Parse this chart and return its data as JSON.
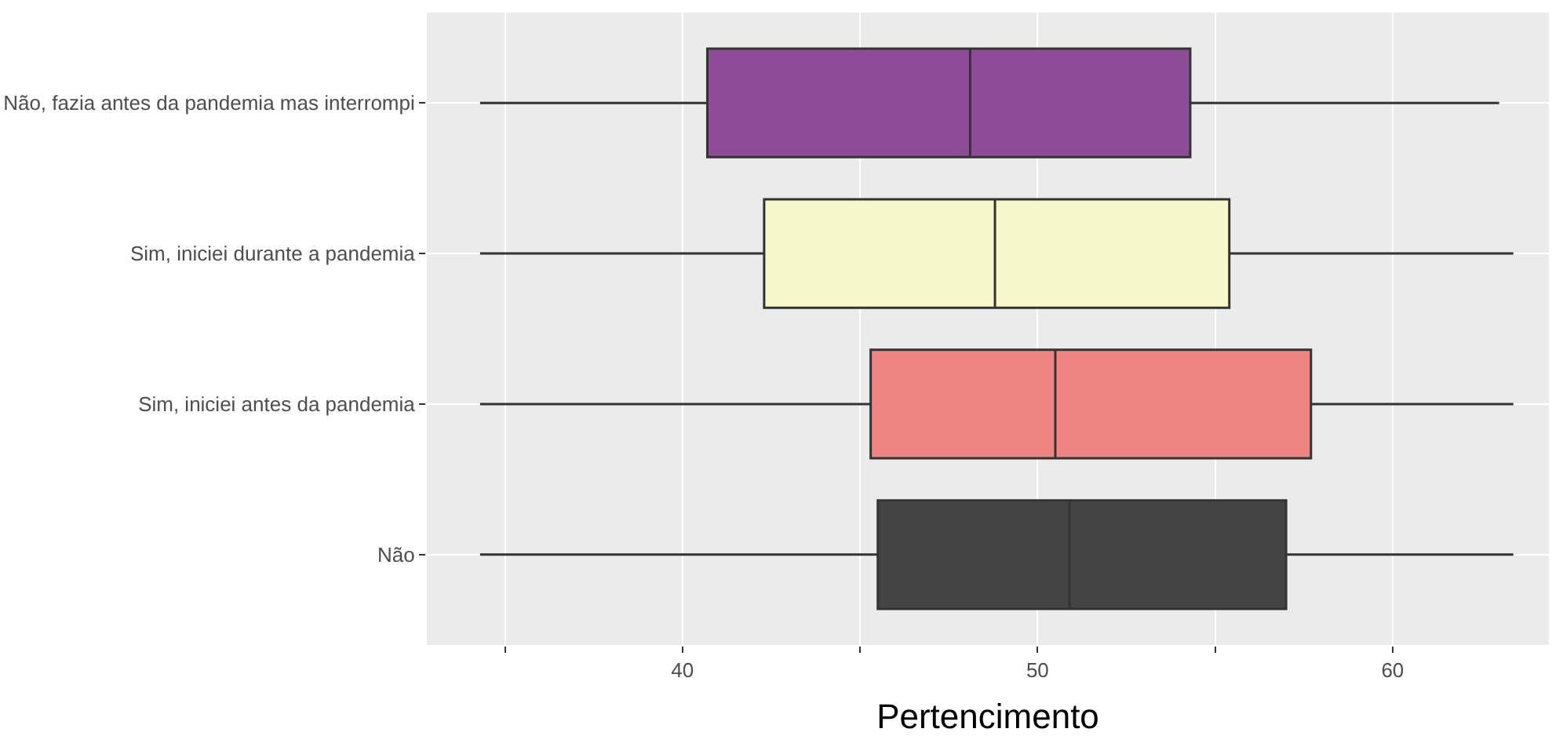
{
  "chart_data": {
    "type": "box",
    "orientation": "horizontal",
    "categories": [
      "Não, fazia antes da pandemia mas interrompi",
      "Sim, iniciei durante a pandemia",
      "Sim, iniciei antes da pandemia",
      "Não"
    ],
    "boxes": [
      {
        "low": 34.3,
        "q1": 40.7,
        "median": 48.1,
        "q3": 54.3,
        "high": 63.0
      },
      {
        "low": 34.3,
        "q1": 42.3,
        "median": 48.8,
        "q3": 55.4,
        "high": 63.4
      },
      {
        "low": 34.3,
        "q1": 45.3,
        "median": 50.5,
        "q3": 57.7,
        "high": 63.4
      },
      {
        "low": 34.3,
        "q1": 45.5,
        "median": 50.9,
        "q3": 57.0,
        "high": 63.4
      }
    ],
    "colors": [
      "#8e4c98",
      "#f6f7cb",
      "#ef8582",
      "#444444"
    ],
    "xlim": [
      32.8,
      64.4
    ],
    "xticks": [
      {
        "value": 35,
        "label": null
      },
      40,
      {
        "value": 45,
        "label": null
      },
      50,
      {
        "value": 55,
        "label": null
      },
      60
    ],
    "xlabel": "Pertencimento",
    "grid": true
  }
}
